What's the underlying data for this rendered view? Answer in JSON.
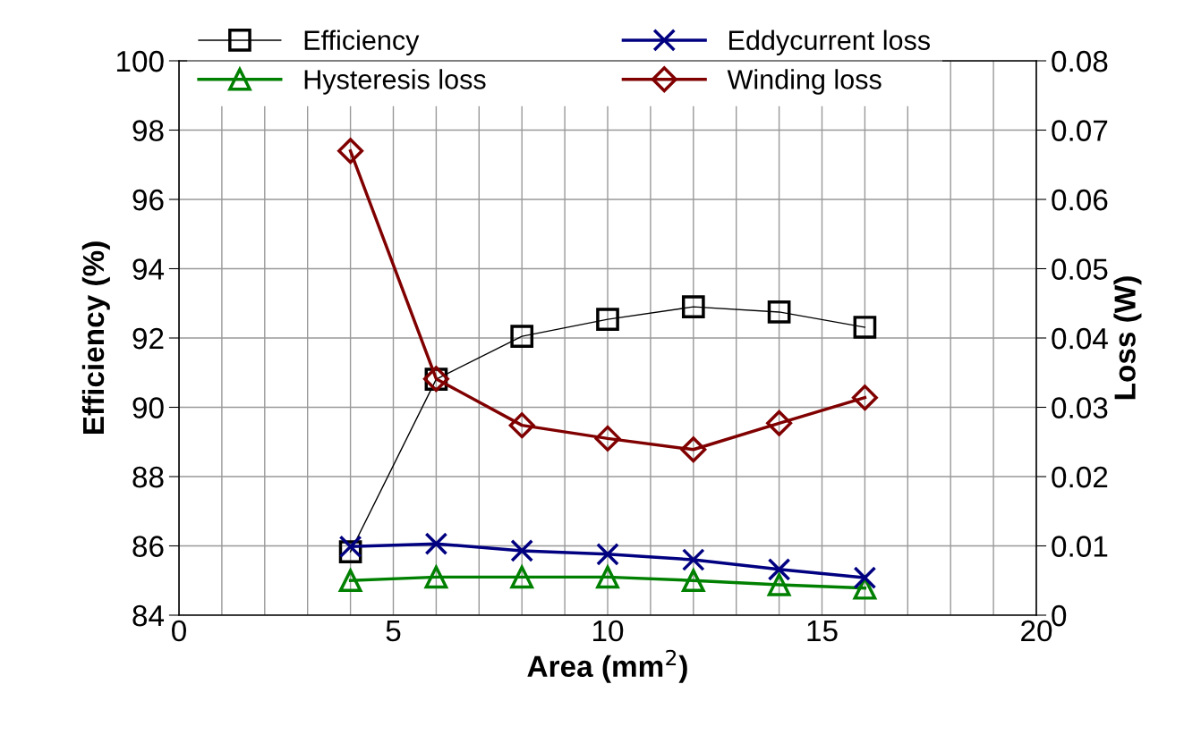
{
  "chart_data": {
    "type": "line",
    "xlabel": "Area (mm$^{2}$)",
    "ylabel": "Efficiency (%)",
    "y2label": "Loss (W)",
    "xlim": [
      0,
      20
    ],
    "xticks": [
      0,
      {
        "value": 1,
        "label": null
      },
      {
        "value": 2,
        "label": null
      },
      {
        "value": 3,
        "label": null
      },
      {
        "value": 4,
        "label": null
      },
      5,
      {
        "value": 6,
        "label": null
      },
      {
        "value": 7,
        "label": null
      },
      {
        "value": 8,
        "label": null
      },
      {
        "value": 9,
        "label": null
      },
      10,
      {
        "value": 11,
        "label": null
      },
      {
        "value": 12,
        "label": null
      },
      {
        "value": 13,
        "label": null
      },
      {
        "value": 14,
        "label": null
      },
      15,
      {
        "value": 16,
        "label": null
      },
      {
        "value": 17,
        "label": null
      },
      {
        "value": 18,
        "label": null
      },
      {
        "value": 19,
        "label": null
      },
      20
    ],
    "ylim": [
      84,
      100
    ],
    "yticks": [
      84,
      86,
      88,
      90,
      92,
      94,
      96,
      98,
      100
    ],
    "y2lim": [
      0,
      0.08
    ],
    "y2ticks": [
      0,
      0.01,
      0.02,
      0.03,
      0.04,
      0.05,
      0.06,
      0.07,
      0.08
    ],
    "grid": true,
    "legend": "top",
    "x": [
      4,
      6,
      8,
      10,
      12,
      14,
      16
    ],
    "series": [
      {
        "name": "Efficiency",
        "color": "#000000",
        "marker": "square",
        "values": [
          85.83,
          90.81,
          92.05,
          92.54,
          92.9,
          92.75,
          92.31
        ]
      },
      {
        "name": "Hysteresis loss",
        "color": "#008000",
        "marker": "triangle",
        "axis": "y2",
        "values": [
          0.005,
          0.0055,
          0.0055,
          0.0055,
          0.005,
          0.0044,
          0.0039
        ]
      },
      {
        "name": "Eddycurrent loss",
        "color": "#000080",
        "marker": "cross",
        "axis": "y2",
        "values": [
          0.0099,
          0.0103,
          0.0093,
          0.0088,
          0.008,
          0.0066,
          0.0054
        ]
      },
      {
        "name": "Winding loss",
        "color": "#800000",
        "marker": "diamond",
        "axis": "y2",
        "values": [
          0.067,
          0.0341,
          0.0274,
          0.0255,
          0.0239,
          0.0277,
          0.0314
        ]
      }
    ]
  }
}
